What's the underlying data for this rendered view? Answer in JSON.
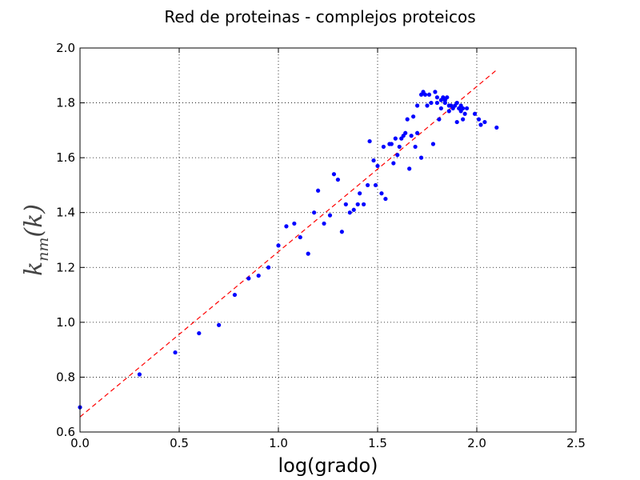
{
  "chart_data": {
    "type": "scatter",
    "title": "Red de proteinas - complejos proteicos",
    "xlabel": "log(grado)",
    "ylabel": "k",
    "ylabel_subscript": "nm",
    "ylabel_suffix": "(k)",
    "xlim": [
      0.0,
      2.5
    ],
    "ylim": [
      0.6,
      2.0
    ],
    "xticks": [
      "0.0",
      "0.5",
      "1.0",
      "1.5",
      "2.0",
      "2.5"
    ],
    "yticks": [
      "0.6",
      "0.8",
      "1.0",
      "1.2",
      "1.4",
      "1.6",
      "1.8",
      "2.0"
    ],
    "grid": true,
    "series": [
      {
        "kind": "points",
        "color": "#0000ff",
        "x": [
          0.0,
          0.3,
          0.48,
          0.6,
          0.7,
          0.78,
          0.85,
          0.9,
          0.95,
          1.0,
          1.04,
          1.08,
          1.11,
          1.15,
          1.18,
          1.2,
          1.23,
          1.26,
          1.28,
          1.3,
          1.32,
          1.34,
          1.36,
          1.38,
          1.4,
          1.41,
          1.43,
          1.45,
          1.46,
          1.48,
          1.49,
          1.5,
          1.52,
          1.53,
          1.54,
          1.56,
          1.57,
          1.58,
          1.59,
          1.6,
          1.61,
          1.62,
          1.63,
          1.64,
          1.65,
          1.66,
          1.67,
          1.68,
          1.69,
          1.7,
          1.7,
          1.72,
          1.72,
          1.73,
          1.74,
          1.75,
          1.76,
          1.77,
          1.78,
          1.79,
          1.8,
          1.8,
          1.81,
          1.82,
          1.82,
          1.83,
          1.84,
          1.84,
          1.85,
          1.86,
          1.86,
          1.87,
          1.88,
          1.89,
          1.9,
          1.9,
          1.91,
          1.92,
          1.92,
          1.93,
          1.93,
          1.94,
          1.95,
          1.99,
          2.01,
          2.02,
          2.04,
          2.1
        ],
        "y": [
          0.69,
          0.81,
          0.89,
          0.96,
          0.99,
          1.1,
          1.16,
          1.17,
          1.2,
          1.28,
          1.35,
          1.36,
          1.31,
          1.25,
          1.4,
          1.48,
          1.36,
          1.39,
          1.54,
          1.52,
          1.33,
          1.43,
          1.4,
          1.41,
          1.43,
          1.47,
          1.43,
          1.5,
          1.66,
          1.59,
          1.5,
          1.57,
          1.47,
          1.64,
          1.45,
          1.65,
          1.65,
          1.58,
          1.67,
          1.61,
          1.64,
          1.67,
          1.68,
          1.69,
          1.74,
          1.56,
          1.68,
          1.75,
          1.64,
          1.69,
          1.79,
          1.83,
          1.6,
          1.84,
          1.83,
          1.79,
          1.83,
          1.8,
          1.65,
          1.84,
          1.8,
          1.82,
          1.74,
          1.81,
          1.78,
          1.82,
          1.8,
          1.81,
          1.82,
          1.79,
          1.77,
          1.79,
          1.78,
          1.79,
          1.8,
          1.73,
          1.78,
          1.79,
          1.77,
          1.74,
          1.78,
          1.76,
          1.78,
          1.76,
          1.74,
          1.72,
          1.73,
          1.71
        ]
      },
      {
        "kind": "fit-line",
        "color": "#ff0000",
        "dashed": true,
        "x": [
          0.0,
          2.1
        ],
        "y": [
          0.655,
          1.92
        ]
      }
    ]
  }
}
